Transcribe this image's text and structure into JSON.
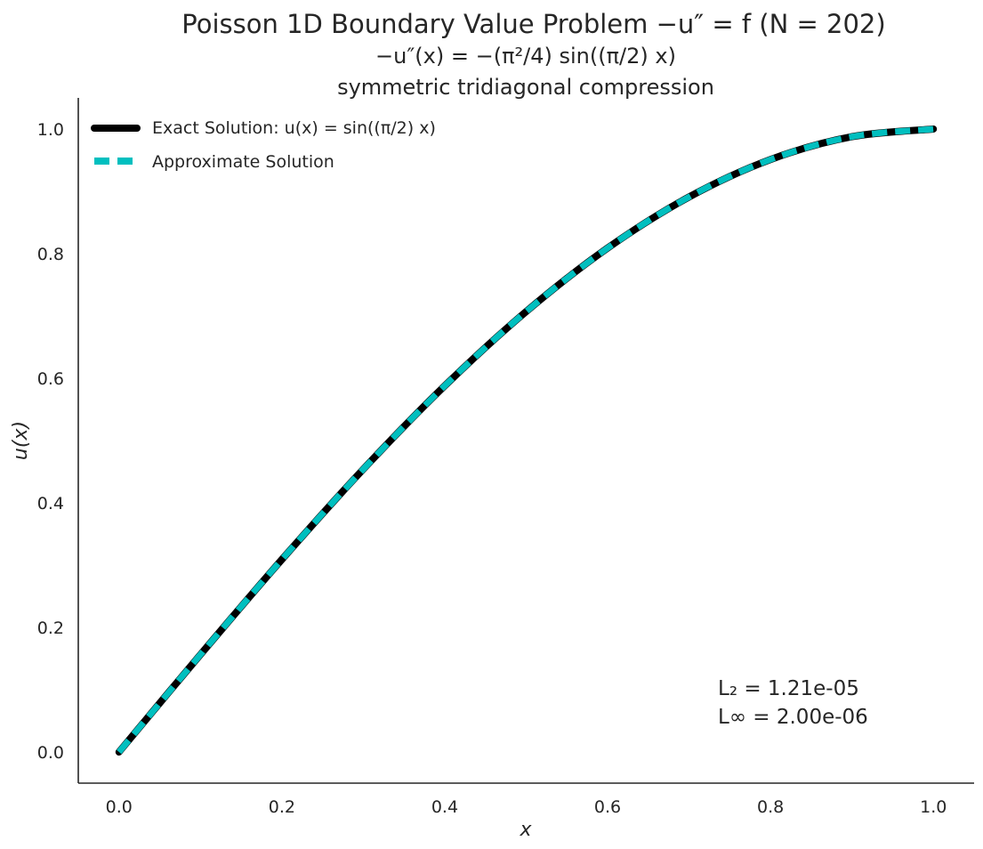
{
  "chart_data": {
    "type": "line",
    "title": "Poisson 1D Boundary Value Problem −u″ = f (N = 202)",
    "subtitle_equation": "−u″(x) = −(π²/4) sin((π/2) x)",
    "subtitle_method": "symmetric tridiagonal compression",
    "xlabel": "x",
    "ylabel": "u(x)",
    "xlim": [
      -0.05,
      1.05
    ],
    "ylim": [
      -0.05,
      1.05
    ],
    "xticks": [
      "0.0",
      "0.2",
      "0.4",
      "0.6",
      "0.8",
      "1.0"
    ],
    "yticks": [
      "0.0",
      "0.2",
      "0.4",
      "0.6",
      "0.8",
      "1.0"
    ],
    "grid": false,
    "legend_position": "top-left",
    "series": [
      {
        "name": "Exact Solution: u(x) = sin((π/2) x)",
        "style": "solid",
        "color": "#000000",
        "x": [
          0.0,
          0.1,
          0.2,
          0.3,
          0.4,
          0.5,
          0.6,
          0.7,
          0.8,
          0.9,
          1.0
        ],
        "y": [
          0.0,
          0.1564,
          0.309,
          0.454,
          0.5878,
          0.7071,
          0.809,
          0.891,
          0.9511,
          0.9877,
          1.0
        ]
      },
      {
        "name": "Approximate Solution",
        "style": "dashed",
        "color": "#00bfbf",
        "x": [
          0.0,
          0.1,
          0.2,
          0.3,
          0.4,
          0.5,
          0.6,
          0.7,
          0.8,
          0.9,
          1.0
        ],
        "y": [
          0.0,
          0.1564,
          0.309,
          0.454,
          0.5878,
          0.7071,
          0.809,
          0.891,
          0.9511,
          0.9877,
          1.0
        ]
      }
    ],
    "annotations": {
      "l2_label": "L₂ = 1.21e-05",
      "linf_label": "L∞ = 2.00e-06"
    }
  }
}
